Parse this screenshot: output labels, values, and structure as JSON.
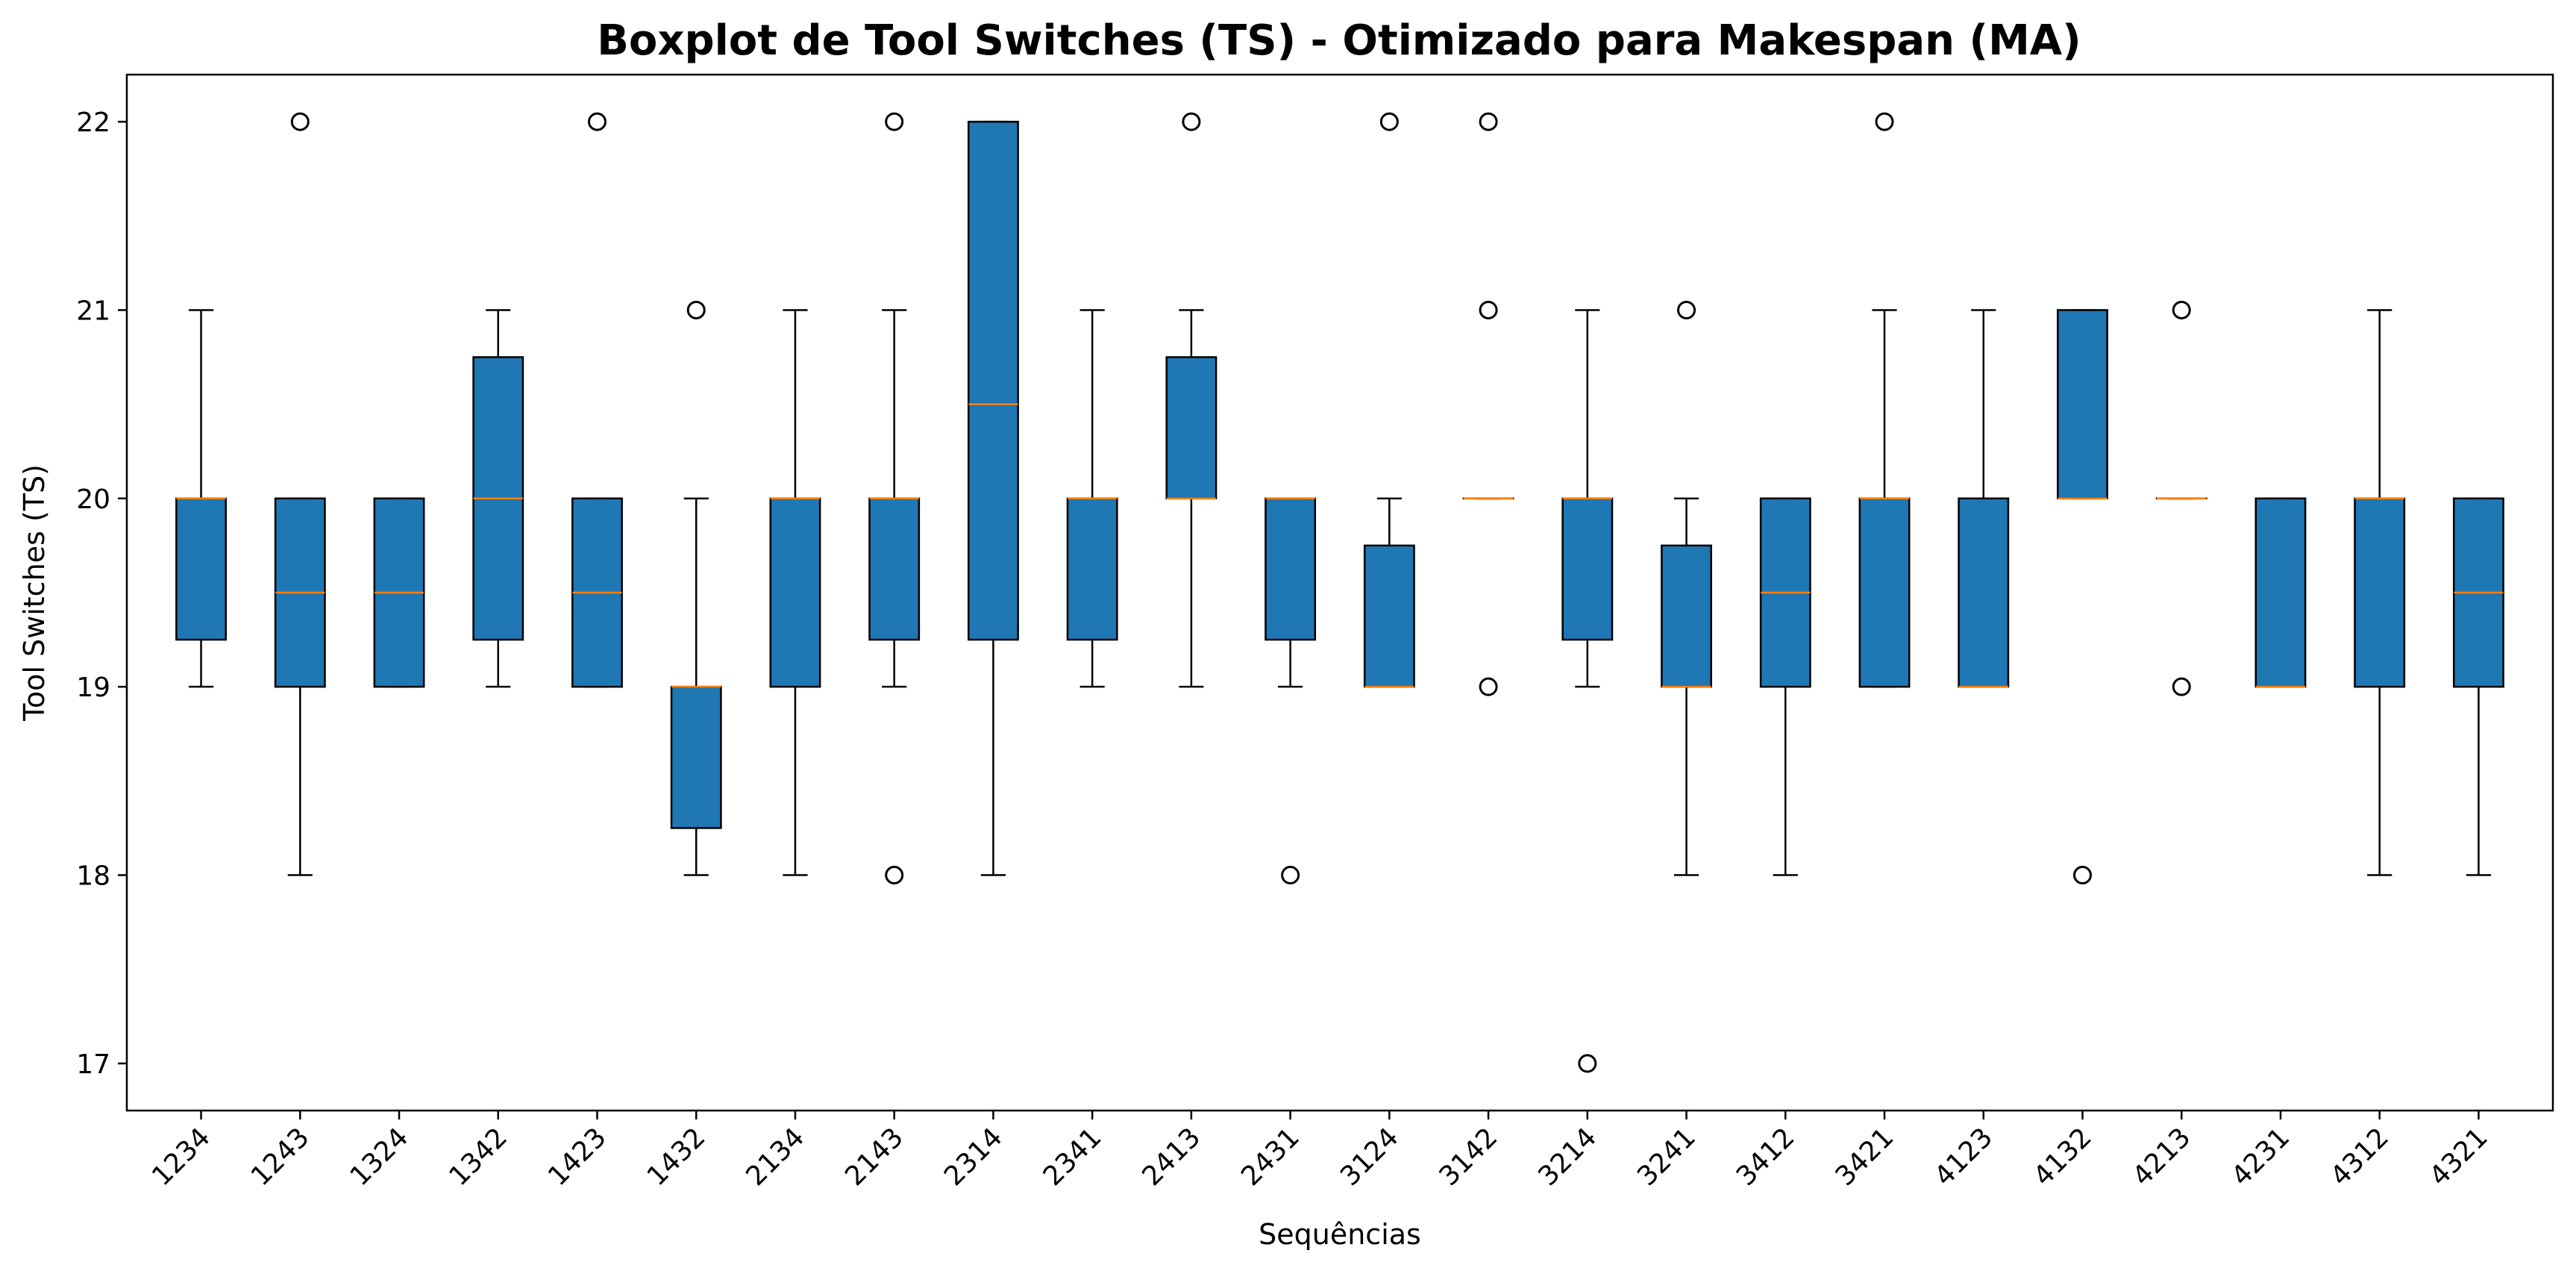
{
  "chart_data": {
    "type": "boxplot",
    "title": "Boxplot de Tool Switches (TS) - Otimizado para Makespan (MA)",
    "xlabel": "Sequências",
    "ylabel": "Tool Switches (TS)",
    "ylim": [
      16.75,
      22.25
    ],
    "yticks": [
      "17",
      "18",
      "19",
      "20",
      "21",
      "22"
    ],
    "grid": false,
    "colors": {
      "box_fill": "#1f77b4",
      "median": "#ff7f0e",
      "lines": "#000000"
    },
    "categories": [
      "1234",
      "1243",
      "1324",
      "1342",
      "1423",
      "1432",
      "2134",
      "2143",
      "2314",
      "2341",
      "2413",
      "2431",
      "3124",
      "3142",
      "3214",
      "3241",
      "3412",
      "3421",
      "4123",
      "4132",
      "4213",
      "4231",
      "4312",
      "4321"
    ],
    "boxes": [
      {
        "label": "1234",
        "whislo": 19,
        "q1": 19.25,
        "med": 20,
        "q3": 20,
        "whishi": 21,
        "fliers": []
      },
      {
        "label": "1243",
        "whislo": 18,
        "q1": 19,
        "med": 19.5,
        "q3": 20,
        "whishi": 20,
        "fliers": [
          22
        ]
      },
      {
        "label": "1324",
        "whislo": 19,
        "q1": 19,
        "med": 19.5,
        "q3": 20,
        "whishi": 20,
        "fliers": []
      },
      {
        "label": "1342",
        "whislo": 19,
        "q1": 19.25,
        "med": 20,
        "q3": 20.75,
        "whishi": 21,
        "fliers": []
      },
      {
        "label": "1423",
        "whislo": 19,
        "q1": 19,
        "med": 19.5,
        "q3": 20,
        "whishi": 20,
        "fliers": [
          22
        ]
      },
      {
        "label": "1432",
        "whislo": 18,
        "q1": 18.25,
        "med": 19,
        "q3": 19,
        "whishi": 20,
        "fliers": [
          21
        ]
      },
      {
        "label": "2134",
        "whislo": 18,
        "q1": 19,
        "med": 20,
        "q3": 20,
        "whishi": 21,
        "fliers": []
      },
      {
        "label": "2143",
        "whislo": 19,
        "q1": 19.25,
        "med": 20,
        "q3": 20,
        "whishi": 21,
        "fliers": [
          22,
          18
        ]
      },
      {
        "label": "2314",
        "whislo": 18,
        "q1": 19.25,
        "med": 20.5,
        "q3": 22,
        "whishi": 22,
        "fliers": []
      },
      {
        "label": "2341",
        "whislo": 19,
        "q1": 19.25,
        "med": 20,
        "q3": 20,
        "whishi": 21,
        "fliers": []
      },
      {
        "label": "2413",
        "whislo": 19,
        "q1": 20,
        "med": 20,
        "q3": 20.75,
        "whishi": 21,
        "fliers": [
          22
        ]
      },
      {
        "label": "2431",
        "whislo": 19,
        "q1": 19.25,
        "med": 20,
        "q3": 20,
        "whishi": 20,
        "fliers": [
          18
        ]
      },
      {
        "label": "3124",
        "whislo": 19,
        "q1": 19,
        "med": 19,
        "q3": 19.75,
        "whishi": 20,
        "fliers": [
          22
        ]
      },
      {
        "label": "3142",
        "whislo": 20,
        "q1": 20,
        "med": 20,
        "q3": 20,
        "whishi": 20,
        "fliers": [
          22,
          21,
          19
        ]
      },
      {
        "label": "3214",
        "whislo": 19,
        "q1": 19.25,
        "med": 20,
        "q3": 20,
        "whishi": 21,
        "fliers": [
          17
        ]
      },
      {
        "label": "3241",
        "whislo": 18,
        "q1": 19,
        "med": 19,
        "q3": 19.75,
        "whishi": 20,
        "fliers": [
          21
        ]
      },
      {
        "label": "3412",
        "whislo": 18,
        "q1": 19,
        "med": 19.5,
        "q3": 20,
        "whishi": 20,
        "fliers": []
      },
      {
        "label": "3421",
        "whislo": 19,
        "q1": 19,
        "med": 20,
        "q3": 20,
        "whishi": 21,
        "fliers": [
          22
        ]
      },
      {
        "label": "4123",
        "whislo": 19,
        "q1": 19,
        "med": 19,
        "q3": 20,
        "whishi": 21,
        "fliers": []
      },
      {
        "label": "4132",
        "whislo": 20,
        "q1": 20,
        "med": 20,
        "q3": 21,
        "whishi": 21,
        "fliers": [
          18
        ]
      },
      {
        "label": "4213",
        "whislo": 20,
        "q1": 20,
        "med": 20,
        "q3": 20,
        "whishi": 20,
        "fliers": [
          21,
          19
        ]
      },
      {
        "label": "4231",
        "whislo": 19,
        "q1": 19,
        "med": 19,
        "q3": 20,
        "whishi": 20,
        "fliers": []
      },
      {
        "label": "4312",
        "whislo": 18,
        "q1": 19,
        "med": 20,
        "q3": 20,
        "whishi": 21,
        "fliers": []
      },
      {
        "label": "4321",
        "whislo": 18,
        "q1": 19,
        "med": 19.5,
        "q3": 20,
        "whishi": 20,
        "fliers": []
      }
    ]
  }
}
